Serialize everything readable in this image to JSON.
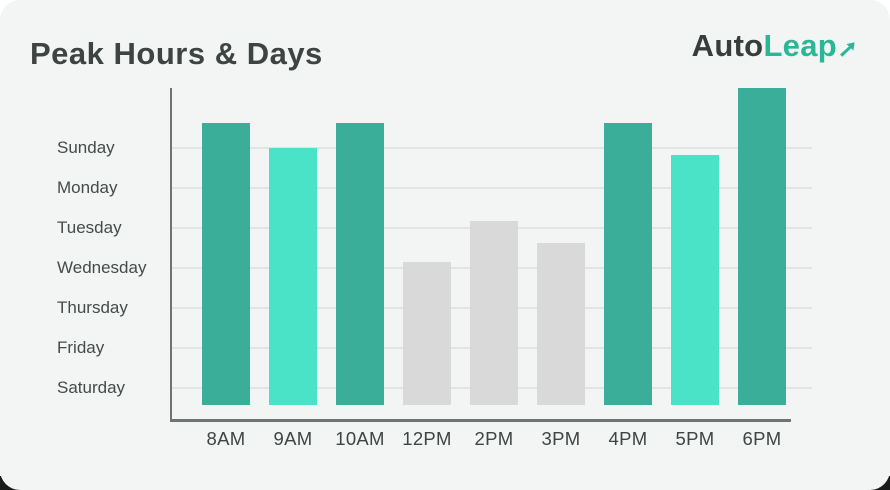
{
  "header": {
    "title": "Peak Hours & Days"
  },
  "logo": {
    "part1": "Auto",
    "part2": "Leap",
    "arrow_icon": "arrow-up-right",
    "color_dark": "#363D3B",
    "color_accent": "#29B795"
  },
  "chart_data": {
    "type": "bar",
    "title": "Peak Hours & Days",
    "categories": [
      "8AM",
      "9AM",
      "10AM",
      "12PM",
      "2PM",
      "3PM",
      "4PM",
      "5PM",
      "6PM"
    ],
    "values": [
      89,
      81,
      89,
      45,
      58,
      51,
      89,
      79,
      100
    ],
    "values_unit": "relative-percent-of-max",
    "bar_colors": [
      "#3BAE99",
      "#4BE3C8",
      "#3BAE99",
      "#D9D9D9",
      "#D9D9D9",
      "#D9D9D9",
      "#3BAE99",
      "#4BE3C8",
      "#3BAE99"
    ],
    "y_tick_labels": [
      "Sunday",
      "Monday",
      "Tuesday",
      "Wednesday",
      "Thursday",
      "Friday",
      "Saturday"
    ],
    "xlabel": "",
    "ylabel": "",
    "grid": true,
    "legend": false,
    "background": "#F3F4F4",
    "gridline_color": "#E2E4E3",
    "axis_color": "#6F7372",
    "label_color": "#454B49"
  }
}
